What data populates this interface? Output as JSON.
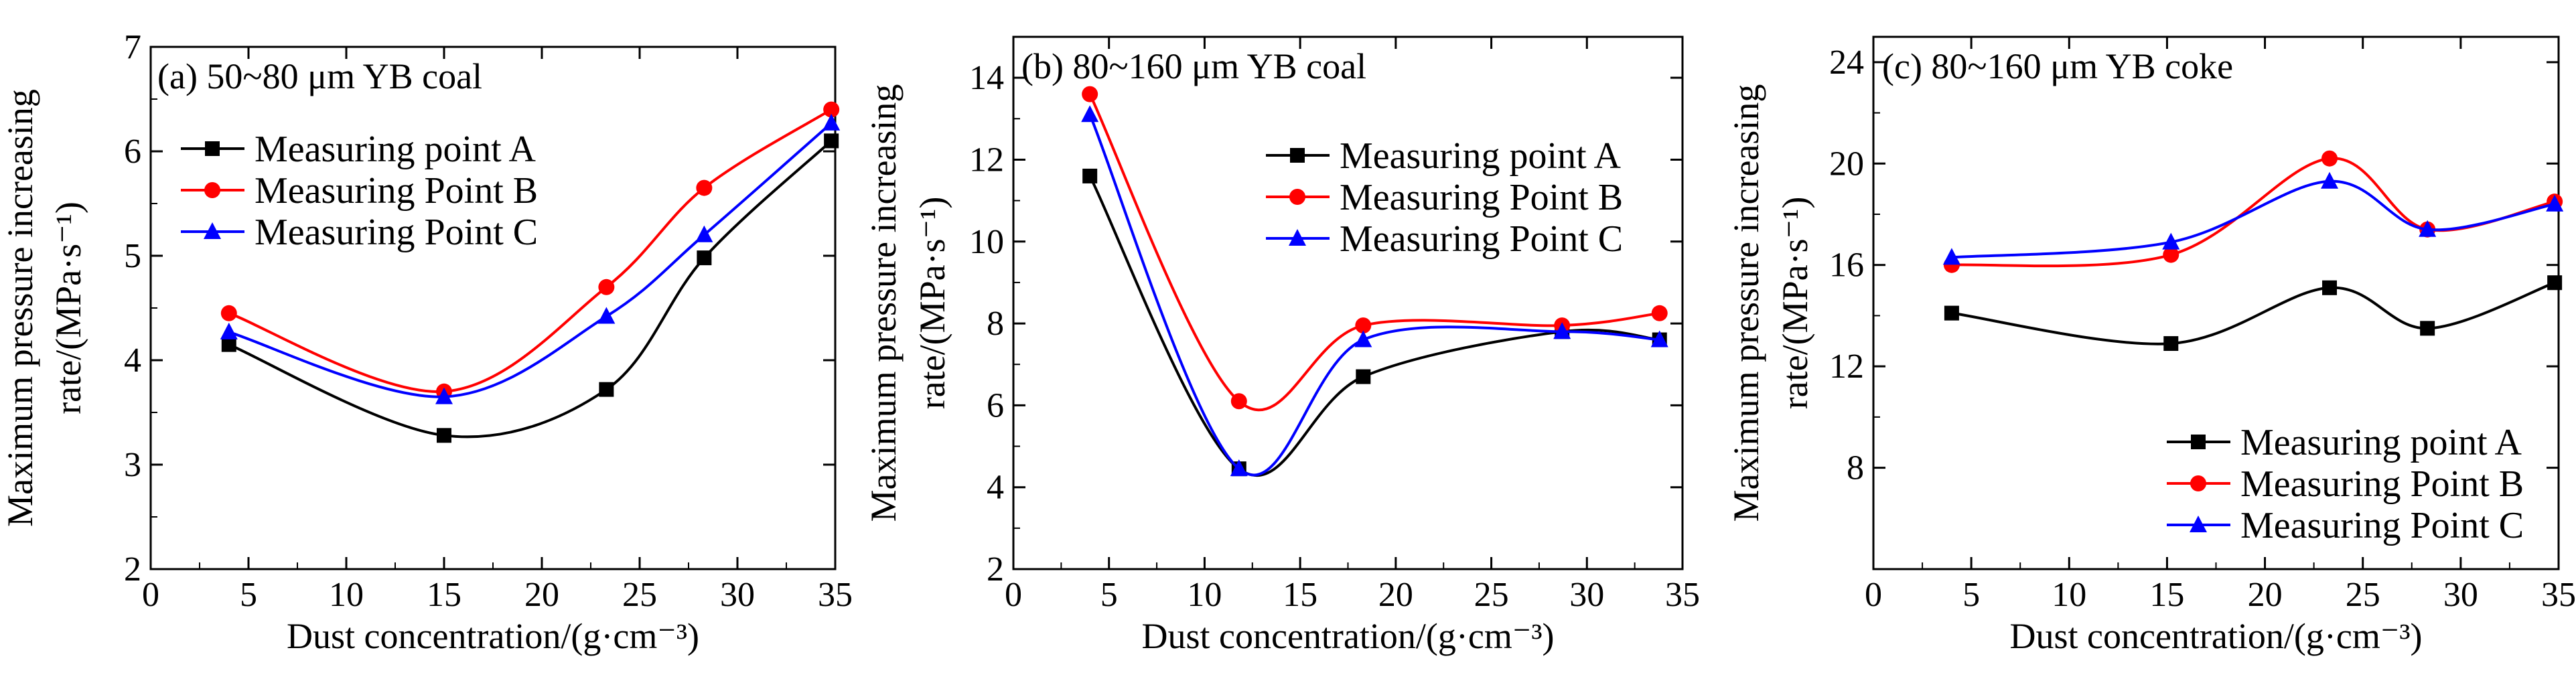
{
  "chart_data": [
    {
      "type": "line",
      "title": "(a) 50~80 μm YB coal",
      "xlabel": "Dust concentration/(g·cm⁻³)",
      "ylabel_line1": "Maximum pressure increasing",
      "ylabel_line2": "rate/(MPa·s⁻¹)",
      "xlim": [
        0,
        35
      ],
      "ylim": [
        2,
        7
      ],
      "xticks": [
        0,
        5,
        10,
        15,
        20,
        25,
        30,
        35
      ],
      "yticks": [
        2,
        3,
        4,
        5,
        6,
        7
      ],
      "x": [
        4,
        15,
        23.3,
        28.3,
        34.8
      ],
      "legend_position": "upper-left",
      "series": [
        {
          "name": "Measuring point A",
          "color": "#000000",
          "marker": "square",
          "values": [
            4.15,
            3.28,
            3.72,
            4.98,
            6.1
          ]
        },
        {
          "name": "Measuring Point B",
          "color": "#ff0000",
          "marker": "circle",
          "values": [
            4.45,
            3.7,
            4.7,
            5.65,
            6.4
          ]
        },
        {
          "name": "Measuring Point C",
          "color": "#0000ff",
          "marker": "triangle",
          "values": [
            4.27,
            3.65,
            4.42,
            5.2,
            6.27
          ]
        }
      ]
    },
    {
      "type": "line",
      "title": "(b)  80~160 μm YB coal",
      "xlabel": "Dust concentration/(g·cm⁻³)",
      "ylabel_line1": "Maximum pressure increasing",
      "ylabel_line2": "rate/(MPa·s⁻¹)",
      "xlim": [
        0,
        35
      ],
      "ylim": [
        2,
        15
      ],
      "xticks": [
        0,
        5,
        10,
        15,
        20,
        25,
        30,
        35
      ],
      "yticks": [
        2,
        4,
        6,
        8,
        10,
        12,
        14
      ],
      "x": [
        4,
        11.8,
        18.3,
        28.7,
        33.8
      ],
      "legend_position": "upper-right",
      "series": [
        {
          "name": "Measuring point A",
          "color": "#000000",
          "marker": "square",
          "values": [
            11.6,
            4.45,
            6.7,
            7.8,
            7.6
          ]
        },
        {
          "name": "Measuring Point B",
          "color": "#ff0000",
          "marker": "circle",
          "values": [
            13.6,
            6.1,
            7.95,
            7.95,
            8.25
          ]
        },
        {
          "name": "Measuring Point C",
          "color": "#0000ff",
          "marker": "triangle",
          "values": [
            13.1,
            4.45,
            7.6,
            7.8,
            7.6
          ]
        }
      ]
    },
    {
      "type": "line",
      "title": "(c) 80~160 μm YB coke",
      "xlabel": "Dust concentration/(g·cm⁻³)",
      "ylabel_line1": "Maximum pressure increasing",
      "ylabel_line2": "rate/(MPa·s⁻¹)",
      "xlim": [
        0,
        35
      ],
      "ylim": [
        4,
        25
      ],
      "xticks": [
        0,
        5,
        10,
        15,
        20,
        25,
        30,
        35
      ],
      "yticks": [
        8,
        12,
        16,
        20,
        24
      ],
      "x": [
        4,
        15.2,
        23.3,
        28.3,
        34.8
      ],
      "legend_position": "lower-right",
      "series": [
        {
          "name": "Measuring point A",
          "color": "#000000",
          "marker": "square",
          "values": [
            14.1,
            12.9,
            15.1,
            13.5,
            15.3
          ]
        },
        {
          "name": "Measuring Point B",
          "color": "#ff0000",
          "marker": "circle",
          "values": [
            16.0,
            16.4,
            20.2,
            17.4,
            18.5
          ]
        },
        {
          "name": "Measuring Point C",
          "color": "#0000ff",
          "marker": "triangle",
          "values": [
            16.3,
            16.9,
            19.3,
            17.4,
            18.4
          ]
        }
      ]
    }
  ]
}
